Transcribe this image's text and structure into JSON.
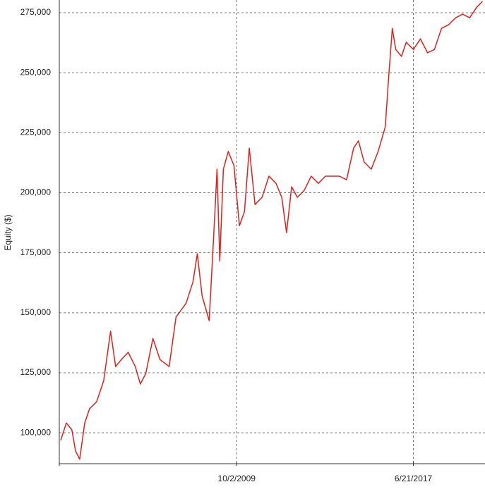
{
  "chart_data": {
    "type": "line",
    "y_label": "Equity ($)",
    "x": [
      2002.06,
      2002.31,
      2002.55,
      2002.71,
      2002.89,
      2003.11,
      2003.32,
      2003.63,
      2003.94,
      2004.24,
      2004.46,
      2004.71,
      2005.01,
      2005.32,
      2005.54,
      2005.78,
      2006.09,
      2006.4,
      2006.8,
      2007.1,
      2007.54,
      2007.84,
      2008.03,
      2008.24,
      2008.55,
      2008.8,
      2008.89,
      2009.01,
      2009.17,
      2009.38,
      2009.63,
      2009.87,
      2010.09,
      2010.3,
      2010.55,
      2010.86,
      2011.16,
      2011.47,
      2011.72,
      2011.93,
      2012.15,
      2012.4,
      2012.7,
      2013.01,
      2013.32,
      2013.63,
      2013.93,
      2014.24,
      2014.55,
      2014.86,
      2015.07,
      2015.32,
      2015.63,
      2015.93,
      2016.24,
      2016.39,
      2016.55,
      2016.7,
      2016.95,
      2017.16,
      2017.47,
      2017.78,
      2018.09,
      2018.39,
      2018.7,
      2019.01,
      2019.32,
      2019.62,
      2019.93,
      2020.24,
      2020.49
    ],
    "values": [
      96800,
      104100,
      101200,
      92400,
      89000,
      104100,
      110000,
      112900,
      121700,
      142300,
      127600,
      130500,
      133500,
      127600,
      120300,
      124700,
      139300,
      130500,
      127600,
      148200,
      154000,
      162800,
      174600,
      157000,
      146700,
      192200,
      209800,
      171600,
      209800,
      217200,
      211300,
      186300,
      192200,
      218600,
      195100,
      198100,
      206900,
      203900,
      198100,
      183400,
      202500,
      198100,
      201000,
      206900,
      203900,
      206900,
      206900,
      206900,
      205400,
      218600,
      221600,
      212800,
      209800,
      217200,
      227400,
      248000,
      268500,
      259700,
      256800,
      262700,
      259700,
      264100,
      258300,
      259700,
      268500,
      270000,
      272900,
      274400,
      272900,
      277300,
      279700
    ],
    "color": "#e0201b",
    "xlim": [
      2002,
      2020.6
    ],
    "xticks": [
      {
        "value": 2009.75,
        "label": "10/2/2009"
      },
      {
        "value": 2017.47,
        "label": "6/21/2017"
      }
    ],
    "ylim": [
      88000,
      280300
    ],
    "yticks": [
      {
        "value": 100000,
        "label": "100,000"
      },
      {
        "value": 125000,
        "label": "125,000"
      },
      {
        "value": 150000,
        "label": "150,000"
      },
      {
        "value": 175000,
        "label": "175,000"
      },
      {
        "value": 200000,
        "label": "200,000"
      },
      {
        "value": 225000,
        "label": "225,000"
      },
      {
        "value": 250000,
        "label": "250,000"
      },
      {
        "value": 275000,
        "label": "275,000"
      }
    ],
    "grid": true
  }
}
